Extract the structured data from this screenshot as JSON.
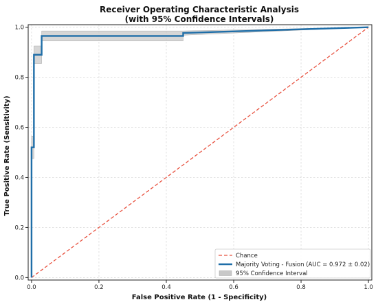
{
  "chart_data": {
    "type": "line",
    "title": "Receiver Operating Characteristic Analysis",
    "subtitle": "(with 95% Confidence Intervals)",
    "xlabel": "False Positive Rate (1 - Specificity)",
    "ylabel": "True Positive Rate (Sensitivity)",
    "xlim": [
      -0.01,
      1.01
    ],
    "ylim": [
      -0.01,
      1.01
    ],
    "xticks": [
      "0.0",
      "0.2",
      "0.4",
      "0.6",
      "0.8",
      "1.0"
    ],
    "yticks": [
      "0.0",
      "0.2",
      "0.4",
      "0.6",
      "0.8",
      "1.0"
    ],
    "grid": true,
    "legend_position": "bottom-right",
    "series": [
      {
        "name": "Chance",
        "style": "dashed",
        "color": "#e8513f",
        "x": [
          0,
          1
        ],
        "y": [
          0,
          1
        ]
      },
      {
        "name": "Majority Voting - Fusion (AUC = 0.972 ± 0.02)",
        "style": "solid",
        "color": "#1f6ea8",
        "x": [
          0.0,
          0.0,
          0.007,
          0.007,
          0.013,
          0.013,
          0.03,
          0.03,
          0.45,
          0.45,
          1.0
        ],
        "y": [
          0.0,
          0.52,
          0.52,
          0.89,
          0.89,
          0.89,
          0.89,
          0.965,
          0.965,
          0.977,
          1.0
        ]
      },
      {
        "name": "95% Confidence Interval",
        "style": "band",
        "color": "#c8c8c8",
        "x": [
          0.0,
          0.0,
          0.007,
          0.007,
          0.013,
          0.013,
          0.03,
          0.03,
          0.45,
          0.45,
          1.0
        ],
        "lower": [
          0.0,
          0.475,
          0.475,
          0.855,
          0.855,
          0.855,
          0.855,
          0.945,
          0.945,
          0.968,
          1.0
        ],
        "upper": [
          0.0,
          0.565,
          0.565,
          0.925,
          0.925,
          0.925,
          0.925,
          0.985,
          0.985,
          0.985,
          1.0
        ]
      }
    ]
  }
}
